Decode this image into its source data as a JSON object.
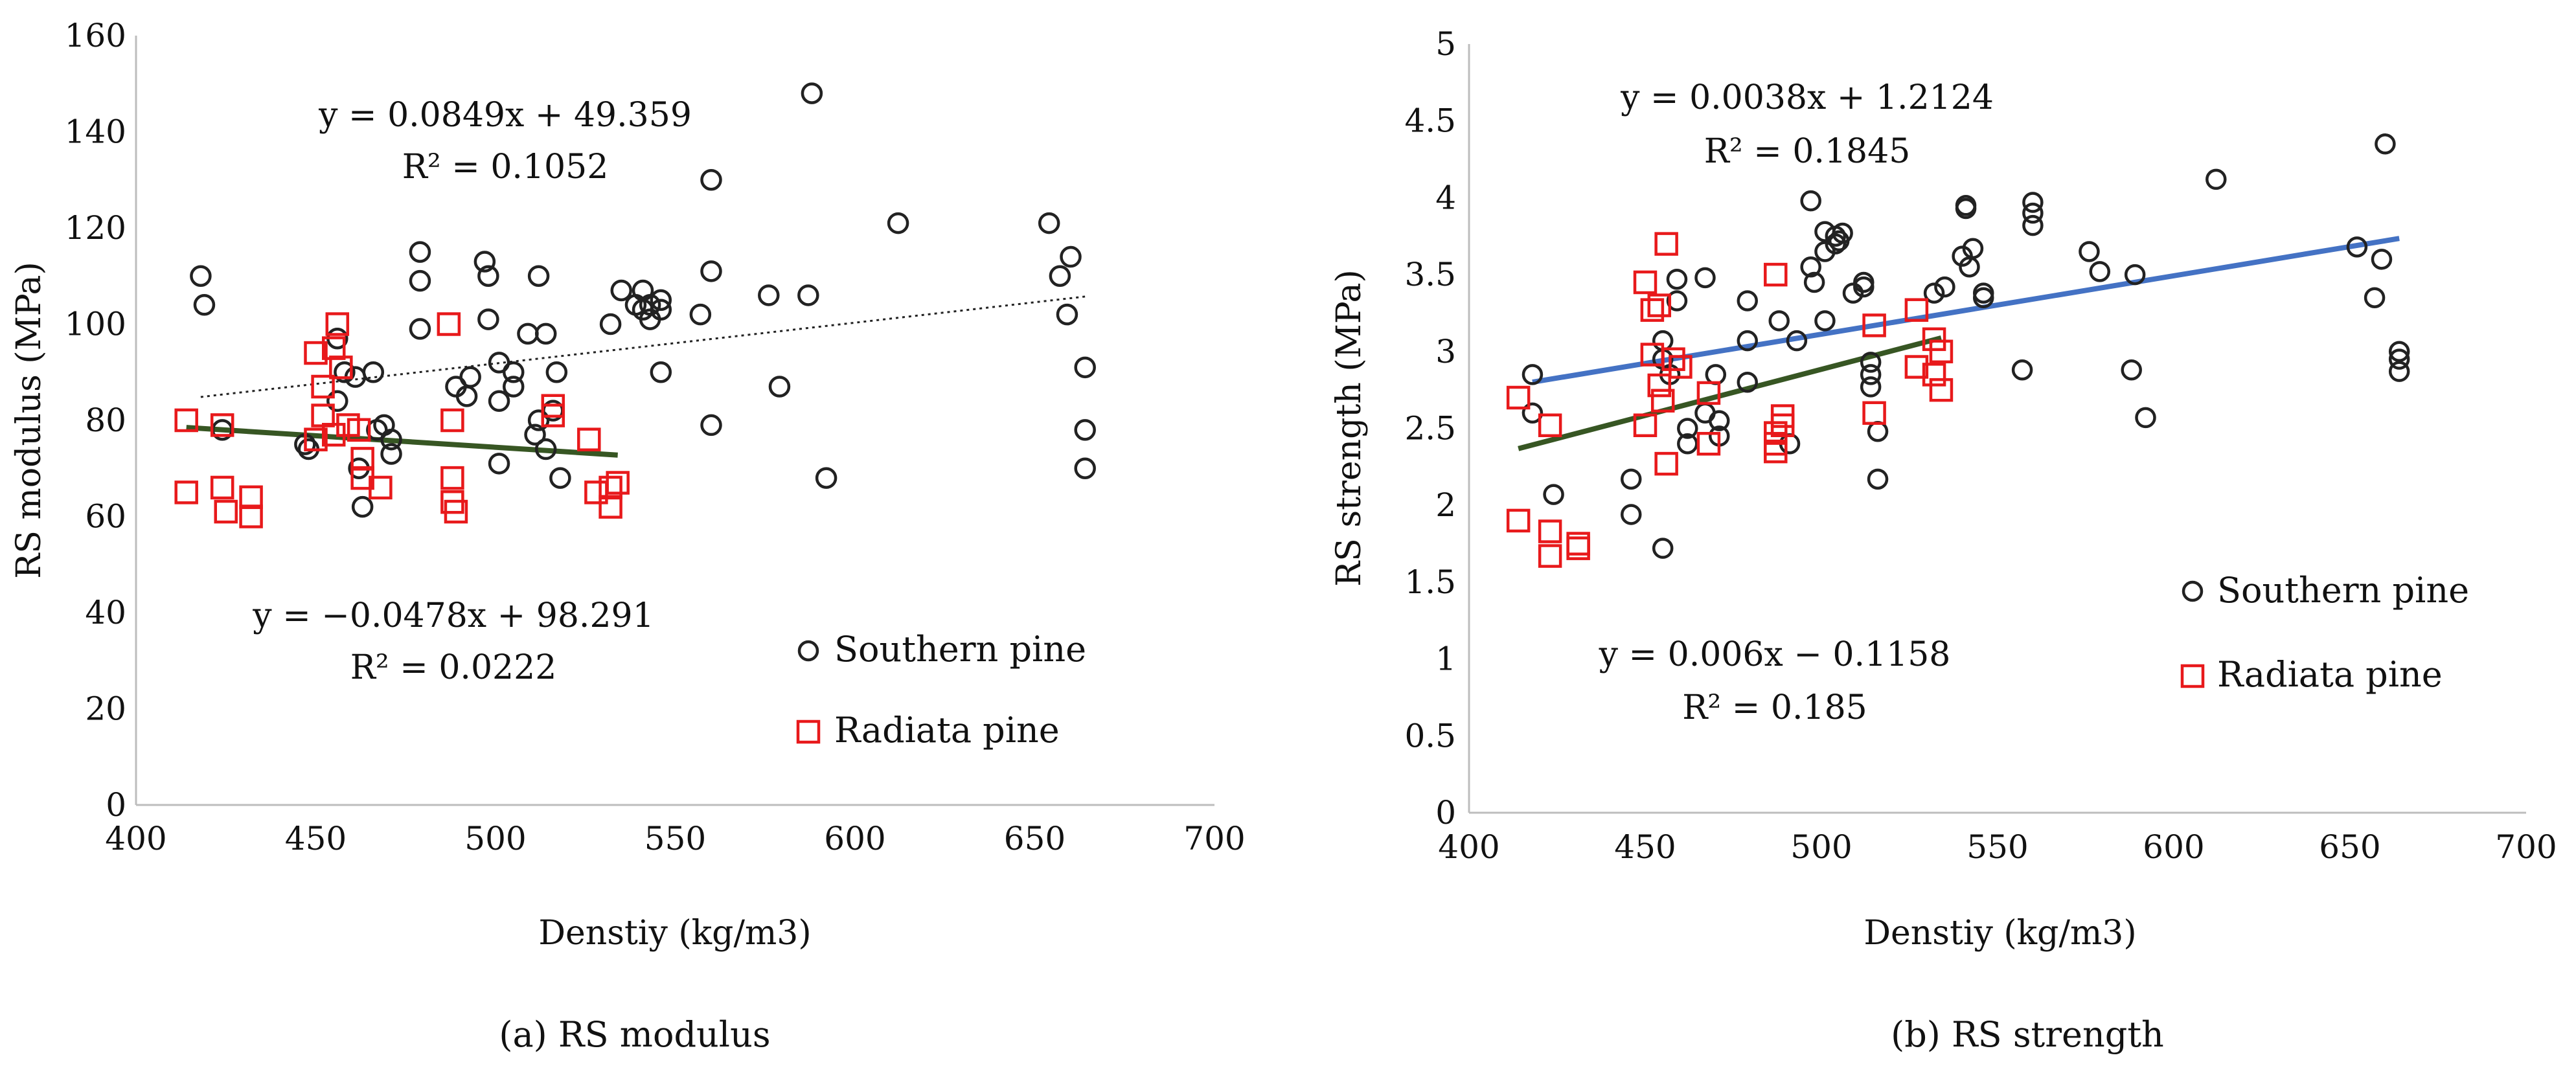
{
  "chart_data": [
    {
      "type": "scatter",
      "title": "",
      "caption": "(a) RS modulus",
      "xlabel": "Denstiy (kg/m3)",
      "ylabel": "RS modulus (MPa)",
      "xlim": [
        400,
        700
      ],
      "ylim": [
        0,
        160
      ],
      "xticks": [
        400,
        450,
        500,
        550,
        600,
        650,
        700
      ],
      "yticks": [
        0,
        20,
        40,
        60,
        80,
        100,
        120,
        140,
        160
      ],
      "legend_position": "bottom-right",
      "series": [
        {
          "name": "Southern pine",
          "marker": "circle",
          "color": "#222222",
          "points": [
            [
              418,
              110
            ],
            [
              419,
              104
            ],
            [
              424,
              78
            ],
            [
              447,
              75
            ],
            [
              448,
              74
            ],
            [
              456,
              97
            ],
            [
              456,
              84
            ],
            [
              458,
              90
            ],
            [
              461,
              89
            ],
            [
              462,
              70
            ],
            [
              463,
              62
            ],
            [
              466,
              90
            ],
            [
              467,
              78
            ],
            [
              469,
              79
            ],
            [
              471,
              76
            ],
            [
              471,
              73
            ],
            [
              479,
              115
            ],
            [
              479,
              109
            ],
            [
              479,
              99
            ],
            [
              489,
              87
            ],
            [
              492,
              85
            ],
            [
              493,
              89
            ],
            [
              497,
              113
            ],
            [
              498,
              110
            ],
            [
              498,
              101
            ],
            [
              501,
              84
            ],
            [
              501,
              92
            ],
            [
              501,
              71
            ],
            [
              505,
              90
            ],
            [
              505,
              87
            ],
            [
              509,
              98
            ],
            [
              511,
              77
            ],
            [
              512,
              110
            ],
            [
              512,
              80
            ],
            [
              514,
              74
            ],
            [
              514,
              98
            ],
            [
              516,
              82
            ],
            [
              517,
              90
            ],
            [
              518,
              68
            ],
            [
              532,
              100
            ],
            [
              535,
              107
            ],
            [
              539,
              104
            ],
            [
              541,
              103
            ],
            [
              541,
              107
            ],
            [
              543,
              101
            ],
            [
              543,
              104
            ],
            [
              546,
              103
            ],
            [
              546,
              105
            ],
            [
              546,
              90
            ],
            [
              557,
              102
            ],
            [
              560,
              111
            ],
            [
              560,
              130
            ],
            [
              560,
              79
            ],
            [
              576,
              106
            ],
            [
              579,
              87
            ],
            [
              587,
              106
            ],
            [
              588,
              148
            ],
            [
              592,
              68
            ],
            [
              612,
              121
            ],
            [
              654,
              121
            ],
            [
              657,
              110
            ],
            [
              659,
              102
            ],
            [
              660,
              114
            ],
            [
              664,
              91
            ],
            [
              664,
              78
            ],
            [
              664,
              70
            ]
          ]
        },
        {
          "name": "Radiata pine",
          "marker": "square",
          "color": "#e8191b",
          "points": [
            [
              414,
              80
            ],
            [
              414,
              65
            ],
            [
              424,
              79
            ],
            [
              424,
              66
            ],
            [
              425,
              61
            ],
            [
              432,
              64
            ],
            [
              432,
              60
            ],
            [
              450,
              94
            ],
            [
              450,
              76
            ],
            [
              452,
              87
            ],
            [
              452,
              81
            ],
            [
              455,
              95
            ],
            [
              455,
              77
            ],
            [
              456,
              100
            ],
            [
              457,
              91
            ],
            [
              459,
              79
            ],
            [
              462,
              78
            ],
            [
              463,
              72
            ],
            [
              463,
              68
            ],
            [
              468,
              66
            ],
            [
              487,
              100
            ],
            [
              488,
              80
            ],
            [
              488,
              68
            ],
            [
              488,
              63
            ],
            [
              489,
              61
            ],
            [
              516,
              83
            ],
            [
              516,
              81
            ],
            [
              526,
              76
            ],
            [
              528,
              65
            ],
            [
              532,
              62
            ],
            [
              532,
              66
            ],
            [
              534,
              67
            ]
          ]
        }
      ],
      "trendlines": [
        {
          "series": "Southern pine",
          "style": "dotted",
          "color": "#222222",
          "x": [
            418,
            664
          ],
          "equation": "y = 0.0849x + 49.359",
          "r2": "R² = 0.1052"
        },
        {
          "series": "Radiata pine",
          "style": "solid",
          "color": "#375623",
          "x": [
            414,
            534
          ],
          "equation": "y = −0.0478x + 98.291",
          "r2": "R² = 0.0222"
        }
      ]
    },
    {
      "type": "scatter",
      "title": "",
      "caption": "(b) RS strength",
      "xlabel": "Denstiy (kg/m3)",
      "ylabel": "RS strength (MPa)",
      "xlim": [
        400,
        700
      ],
      "ylim": [
        0,
        5
      ],
      "xticks": [
        400,
        450,
        500,
        550,
        600,
        650,
        700
      ],
      "yticks": [
        0,
        0.5,
        1,
        1.5,
        2,
        2.5,
        3,
        3.5,
        4,
        4.5,
        5
      ],
      "legend_position": "right",
      "series": [
        {
          "name": "Southern pine",
          "marker": "circle",
          "color": "#222222",
          "points": [
            [
              418,
              2.85
            ],
            [
              418,
              2.6
            ],
            [
              424,
              2.07
            ],
            [
              446,
              2.17
            ],
            [
              446,
              1.94
            ],
            [
              455,
              3.07
            ],
            [
              455,
              2.95
            ],
            [
              455,
              1.72
            ],
            [
              457,
              2.85
            ],
            [
              459,
              3.47
            ],
            [
              459,
              3.33
            ],
            [
              462,
              2.5
            ],
            [
              462,
              2.4
            ],
            [
              467,
              3.48
            ],
            [
              467,
              2.6
            ],
            [
              470,
              2.85
            ],
            [
              471,
              2.55
            ],
            [
              471,
              2.45
            ],
            [
              479,
              3.33
            ],
            [
              479,
              3.07
            ],
            [
              479,
              2.8
            ],
            [
              488,
              3.2
            ],
            [
              491,
              2.4
            ],
            [
              493,
              3.07
            ],
            [
              497,
              3.98
            ],
            [
              497,
              3.55
            ],
            [
              498,
              3.45
            ],
            [
              501,
              3.78
            ],
            [
              501,
              3.2
            ],
            [
              501,
              3.65
            ],
            [
              504,
              3.75
            ],
            [
              504,
              3.7
            ],
            [
              505,
              3.72
            ],
            [
              506,
              3.77
            ],
            [
              509,
              3.38
            ],
            [
              512,
              3.45
            ],
            [
              512,
              3.42
            ],
            [
              514,
              2.93
            ],
            [
              514,
              2.85
            ],
            [
              514,
              2.77
            ],
            [
              516,
              2.48
            ],
            [
              516,
              2.17
            ],
            [
              532,
              3.38
            ],
            [
              535,
              3.42
            ],
            [
              540,
              3.62
            ],
            [
              541,
              3.95
            ],
            [
              541,
              3.93
            ],
            [
              542,
              3.55
            ],
            [
              543,
              3.67
            ],
            [
              546,
              3.38
            ],
            [
              546,
              3.35
            ],
            [
              557,
              2.88
            ],
            [
              560,
              3.97
            ],
            [
              560,
              3.9
            ],
            [
              560,
              3.82
            ],
            [
              576,
              3.65
            ],
            [
              579,
              3.52
            ],
            [
              588,
              2.88
            ],
            [
              589,
              3.5
            ],
            [
              592,
              2.57
            ],
            [
              612,
              4.12
            ],
            [
              652,
              3.68
            ],
            [
              657,
              3.35
            ],
            [
              659,
              3.6
            ],
            [
              660,
              4.35
            ],
            [
              664,
              3.0
            ],
            [
              664,
              2.95
            ],
            [
              664,
              2.87
            ]
          ]
        },
        {
          "name": "Radiata pine",
          "marker": "square",
          "color": "#e8191b",
          "points": [
            [
              414,
              2.7
            ],
            [
              414,
              1.9
            ],
            [
              423,
              2.52
            ],
            [
              423,
              1.83
            ],
            [
              423,
              1.67
            ],
            [
              431,
              1.75
            ],
            [
              431,
              1.72
            ],
            [
              450,
              3.45
            ],
            [
              450,
              2.52
            ],
            [
              452,
              3.27
            ],
            [
              452,
              2.98
            ],
            [
              454,
              3.3
            ],
            [
              454,
              2.78
            ],
            [
              455,
              2.68
            ],
            [
              456,
              3.7
            ],
            [
              456,
              2.27
            ],
            [
              458,
              2.95
            ],
            [
              460,
              2.9
            ],
            [
              468,
              2.73
            ],
            [
              468,
              2.4
            ],
            [
              487,
              3.5
            ],
            [
              487,
              2.47
            ],
            [
              487,
              2.4
            ],
            [
              487,
              2.35
            ],
            [
              489,
              2.58
            ],
            [
              489,
              2.52
            ],
            [
              515,
              3.17
            ],
            [
              515,
              2.6
            ],
            [
              527,
              3.27
            ],
            [
              527,
              2.9
            ],
            [
              532,
              3.08
            ],
            [
              532,
              2.85
            ],
            [
              534,
              3.0
            ],
            [
              534,
              2.75
            ]
          ]
        }
      ],
      "trendlines": [
        {
          "series": "Southern pine",
          "style": "solid",
          "color": "#4472c4",
          "x": [
            418,
            664
          ],
          "equation": "y = 0.0038x + 1.2124",
          "r2": "R² = 0.1845"
        },
        {
          "series": "Radiata pine",
          "style": "solid",
          "color": "#375623",
          "x": [
            414,
            534
          ],
          "equation": "y = 0.006x − 0.1158",
          "r2": "R² = 0.185"
        }
      ]
    }
  ]
}
